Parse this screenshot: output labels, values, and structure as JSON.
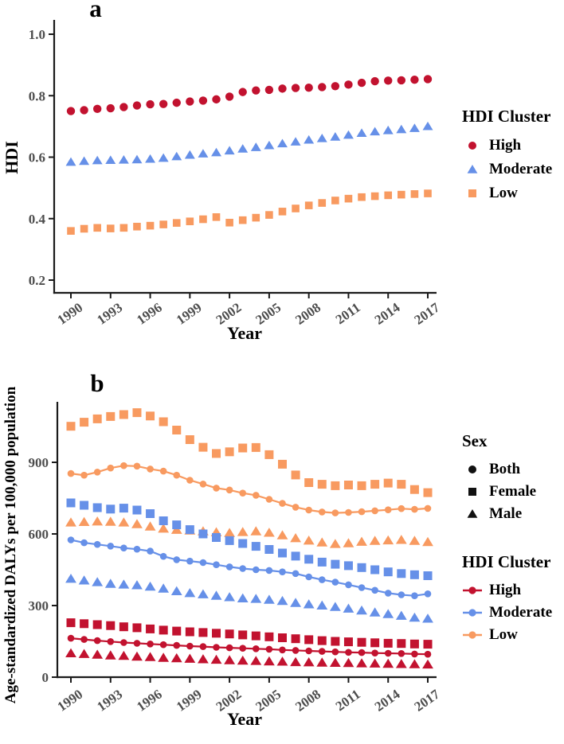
{
  "colors": {
    "high": "#C2122F",
    "moderate": "#6690E8",
    "low": "#F89A60",
    "legend_marker_black": "#111111",
    "axis": "#1A1A1A",
    "tick_label": "#4D4D4D",
    "text": "#000000",
    "background": "#FFFFFF"
  },
  "chart_data": [
    {
      "type": "scatter",
      "panel_tag": "a",
      "xlabel": "Year",
      "ylabel": "HDI",
      "x": [
        1990,
        1991,
        1992,
        1993,
        1994,
        1995,
        1996,
        1997,
        1998,
        1999,
        2000,
        2001,
        2002,
        2003,
        2004,
        2005,
        2006,
        2007,
        2008,
        2009,
        2010,
        2011,
        2012,
        2013,
        2014,
        2015,
        2016,
        2017
      ],
      "x_tick_labels": [
        "1990",
        "1993",
        "1996",
        "1999",
        "2002",
        "2005",
        "2008",
        "2011",
        "2014",
        "2017"
      ],
      "y_tick_labels": [
        "0.2",
        "0.4",
        "0.6",
        "0.8",
        "1.0"
      ],
      "ylim": [
        0.156,
        1.046
      ],
      "grid": false,
      "legend": {
        "title": "HDI Cluster",
        "position": "right",
        "items": [
          {
            "label": "High",
            "marker": "circle",
            "color": "#C2122F"
          },
          {
            "label": "Moderate",
            "marker": "triangle",
            "color": "#6690E8"
          },
          {
            "label": "Low",
            "marker": "square",
            "color": "#F89A60"
          }
        ]
      },
      "series": [
        {
          "name": "High",
          "marker": "circle",
          "color": "#C2122F",
          "line": false,
          "values": [
            0.75,
            0.753,
            0.757,
            0.759,
            0.763,
            0.768,
            0.772,
            0.773,
            0.777,
            0.781,
            0.784,
            0.788,
            0.797,
            0.812,
            0.817,
            0.819,
            0.823,
            0.825,
            0.826,
            0.828,
            0.831,
            0.836,
            0.842,
            0.847,
            0.849,
            0.85,
            0.852,
            0.854
          ]
        },
        {
          "name": "Moderate",
          "marker": "triangle",
          "color": "#6690E8",
          "line": false,
          "values": [
            0.584,
            0.587,
            0.589,
            0.59,
            0.591,
            0.592,
            0.594,
            0.597,
            0.602,
            0.607,
            0.611,
            0.615,
            0.621,
            0.627,
            0.632,
            0.638,
            0.644,
            0.65,
            0.656,
            0.661,
            0.666,
            0.672,
            0.678,
            0.683,
            0.687,
            0.69,
            0.694,
            0.7
          ]
        },
        {
          "name": "Low",
          "marker": "square",
          "color": "#F89A60",
          "line": false,
          "values": [
            0.36,
            0.367,
            0.37,
            0.368,
            0.37,
            0.374,
            0.377,
            0.381,
            0.386,
            0.391,
            0.398,
            0.405,
            0.387,
            0.395,
            0.403,
            0.412,
            0.423,
            0.433,
            0.443,
            0.451,
            0.459,
            0.465,
            0.47,
            0.473,
            0.476,
            0.478,
            0.48,
            0.482
          ]
        }
      ]
    },
    {
      "type": "scatter",
      "panel_tag": "b",
      "xlabel": "Year",
      "ylabel": "Age-standardized DALYs per 100,000 population",
      "x": [
        1990,
        1991,
        1992,
        1993,
        1994,
        1995,
        1996,
        1997,
        1998,
        1999,
        2000,
        2001,
        2002,
        2003,
        2004,
        2005,
        2006,
        2007,
        2008,
        2009,
        2010,
        2011,
        2012,
        2013,
        2014,
        2015,
        2016,
        2017
      ],
      "x_tick_labels": [
        "1990",
        "1993",
        "1996",
        "1999",
        "2002",
        "2005",
        "2008",
        "2011",
        "2014",
        "2017"
      ],
      "y_tick_labels": [
        "0",
        "300",
        "600",
        "900"
      ],
      "ylim": [
        0,
        1153
      ],
      "grid": false,
      "legends": [
        {
          "title": "Sex",
          "items": [
            {
              "label": "Both",
              "marker": "circle",
              "color": "#111111"
            },
            {
              "label": "Female",
              "marker": "square",
              "color": "#111111"
            },
            {
              "label": "Male",
              "marker": "triangle",
              "color": "#111111"
            }
          ]
        },
        {
          "title": "HDI Cluster",
          "items": [
            {
              "label": "High",
              "marker": "line-circle",
              "color": "#C2122F"
            },
            {
              "label": "Moderate",
              "marker": "line-circle",
              "color": "#6690E8"
            },
            {
              "label": "Low",
              "marker": "line-circle",
              "color": "#F89A60"
            }
          ]
        }
      ],
      "series": [
        {
          "name": "Low Female",
          "cluster": "Low",
          "sex": "Female",
          "marker": "square",
          "color": "#F89A60",
          "line": false,
          "values": [
            1051,
            1068,
            1082,
            1092,
            1100,
            1108,
            1094,
            1070,
            1035,
            995,
            963,
            937,
            944,
            960,
            962,
            932,
            892,
            847,
            815,
            808,
            802,
            805,
            802,
            808,
            813,
            808,
            786,
            773
          ]
        },
        {
          "name": "Low Male",
          "cluster": "Low",
          "sex": "Male",
          "marker": "triangle",
          "color": "#F89A60",
          "line": false,
          "values": [
            648,
            650,
            652,
            651,
            648,
            641,
            631,
            622,
            617,
            614,
            611,
            607,
            604,
            608,
            611,
            605,
            594,
            582,
            572,
            564,
            558,
            561,
            567,
            571,
            573,
            575,
            571,
            566
          ]
        },
        {
          "name": "Moderate Female",
          "cluster": "Moderate",
          "sex": "Female",
          "marker": "square",
          "color": "#6690E8",
          "line": false,
          "values": [
            730,
            720,
            710,
            704,
            708,
            700,
            685,
            655,
            638,
            618,
            600,
            585,
            572,
            560,
            548,
            535,
            520,
            507,
            494,
            482,
            473,
            467,
            459,
            450,
            441,
            434,
            429,
            425
          ]
        },
        {
          "name": "Moderate Male",
          "cluster": "Moderate",
          "sex": "Male",
          "marker": "triangle",
          "color": "#6690E8",
          "line": false,
          "values": [
            412,
            405,
            398,
            391,
            388,
            385,
            379,
            371,
            360,
            352,
            347,
            341,
            335,
            330,
            328,
            324,
            319,
            311,
            305,
            300,
            294,
            287,
            279,
            271,
            264,
            257,
            249,
            245
          ]
        },
        {
          "name": "High Female",
          "cluster": "High",
          "sex": "Female",
          "marker": "square",
          "color": "#C2122F",
          "line": false,
          "values": [
            228,
            224,
            220,
            216,
            211,
            207,
            202,
            197,
            193,
            190,
            187,
            184,
            181,
            177,
            173,
            169,
            165,
            161,
            157,
            153,
            150,
            148,
            146,
            144,
            142,
            141,
            139,
            138
          ]
        },
        {
          "name": "High Male",
          "cluster": "High",
          "sex": "Male",
          "marker": "triangle",
          "color": "#C2122F",
          "line": false,
          "values": [
            100,
            97,
            94,
            91,
            89,
            86,
            84,
            81,
            79,
            77,
            75,
            73,
            71,
            69,
            68,
            66,
            65,
            63,
            62,
            61,
            60,
            59,
            58,
            57,
            56,
            55,
            54,
            53
          ]
        },
        {
          "name": "Low Both",
          "cluster": "Low",
          "sex": "Both",
          "marker": "circle",
          "color": "#F89A60",
          "line": true,
          "values": [
            853,
            846,
            859,
            876,
            886,
            884,
            872,
            863,
            846,
            825,
            809,
            792,
            784,
            771,
            762,
            745,
            728,
            712,
            700,
            692,
            688,
            690,
            693,
            697,
            701,
            706,
            703,
            707
          ]
        },
        {
          "name": "Moderate Both",
          "cluster": "Moderate",
          "sex": "Both",
          "marker": "circle",
          "color": "#6690E8",
          "line": true,
          "values": [
            575,
            563,
            556,
            549,
            541,
            536,
            528,
            506,
            492,
            486,
            480,
            471,
            462,
            455,
            450,
            447,
            441,
            434,
            420,
            408,
            398,
            387,
            375,
            364,
            352,
            345,
            341,
            349
          ]
        },
        {
          "name": "High Both",
          "cluster": "High",
          "sex": "Both",
          "marker": "circle",
          "color": "#C2122F",
          "line": true,
          "values": [
            163,
            158,
            153,
            149,
            145,
            142,
            139,
            136,
            133,
            130,
            128,
            125,
            123,
            121,
            119,
            117,
            114,
            112,
            110,
            108,
            106,
            104,
            103,
            101,
            100,
            99,
            97,
            96
          ]
        }
      ]
    }
  ]
}
